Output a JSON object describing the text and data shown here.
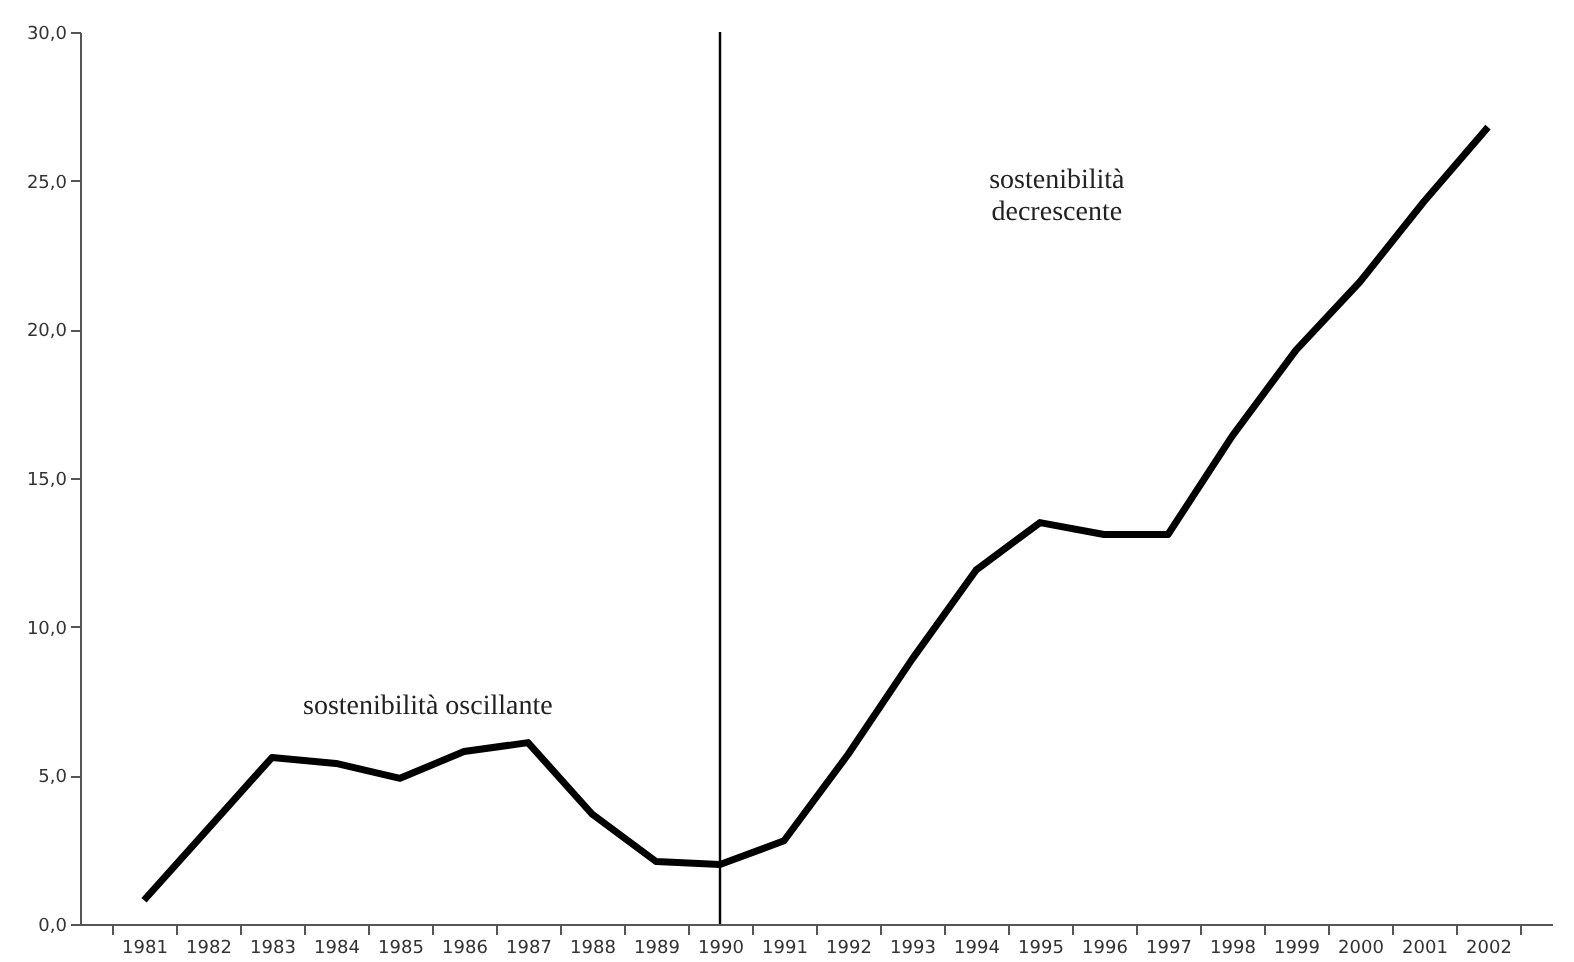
{
  "chart_data": {
    "type": "line",
    "categories": [
      "1981",
      "1982",
      "1983",
      "1984",
      "1985",
      "1986",
      "1987",
      "1988",
      "1989",
      "1990",
      "1991",
      "1992",
      "1993",
      "1994",
      "1995",
      "1996",
      "1997",
      "1998",
      "1999",
      "2000",
      "2001",
      "2002"
    ],
    "series": [
      {
        "color": "#000000",
        "values": [
          0.8,
          3.2,
          5.6,
          5.4,
          4.9,
          5.8,
          6.1,
          3.7,
          2.1,
          2.0,
          2.8,
          5.7,
          8.9,
          11.9,
          13.5,
          13.1,
          13.1,
          16.4,
          19.3,
          21.6,
          24.3,
          26.8
        ]
      }
    ],
    "ylim": [
      0,
      30
    ],
    "yticks": [
      {
        "value": 0,
        "label": "0,0"
      },
      {
        "value": 5,
        "label": "5,0"
      },
      {
        "value": 10,
        "label": "10,0"
      },
      {
        "value": 15,
        "label": "15,0"
      },
      {
        "value": 20,
        "label": "20,0"
      },
      {
        "value": 25,
        "label": "25,0"
      },
      {
        "value": 30,
        "label": "30,0"
      }
    ],
    "ref_lines": [
      {
        "axis": "x",
        "value": "1990",
        "color": "#000000"
      }
    ],
    "annotations": [
      "sostenibilità oscillante",
      "sostenibilità\ndecrescente"
    ],
    "grid": false,
    "marker": "none",
    "line_style": "solid"
  }
}
